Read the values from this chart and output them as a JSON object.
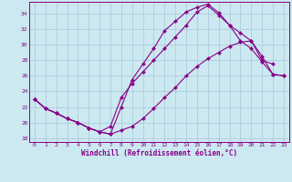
{
  "xlabel": "Windchill (Refroidissement éolien,°C)",
  "xlim_min": -0.5,
  "xlim_max": 23.5,
  "ylim_min": 17.5,
  "ylim_max": 35.5,
  "xticks": [
    0,
    1,
    2,
    3,
    4,
    5,
    6,
    7,
    8,
    9,
    10,
    11,
    12,
    13,
    14,
    15,
    16,
    17,
    18,
    19,
    20,
    21,
    22,
    23
  ],
  "yticks": [
    18,
    20,
    22,
    24,
    26,
    28,
    30,
    32,
    34
  ],
  "bg_color": "#cce8f0",
  "line_color": "#880088",
  "grid_color": "#a8c8d8",
  "curve1_x": [
    0,
    1,
    2,
    3,
    4,
    5,
    6,
    7,
    8,
    9,
    10,
    11,
    12,
    13,
    14,
    15,
    16,
    17,
    18,
    19,
    20,
    21,
    22
  ],
  "curve1_y": [
    23.0,
    21.8,
    21.2,
    20.5,
    20.0,
    19.3,
    18.8,
    18.5,
    22.0,
    25.5,
    27.5,
    29.5,
    31.8,
    33.0,
    34.2,
    34.8,
    35.2,
    34.1,
    32.5,
    31.5,
    30.5,
    28.0,
    27.5
  ],
  "curve2_x": [
    0,
    1,
    2,
    3,
    4,
    5,
    6,
    7,
    8,
    9,
    10,
    11,
    12,
    13,
    14,
    15,
    16,
    17,
    18,
    19,
    20,
    21,
    22,
    23
  ],
  "curve2_y": [
    23.0,
    21.8,
    21.2,
    20.5,
    20.0,
    19.3,
    18.8,
    18.5,
    19.0,
    19.5,
    20.5,
    21.8,
    23.2,
    24.5,
    26.0,
    27.2,
    28.2,
    29.0,
    29.8,
    30.3,
    30.5,
    28.5,
    26.2,
    26.0
  ],
  "curve3_x": [
    0,
    1,
    2,
    3,
    4,
    5,
    6,
    7,
    8,
    9,
    10,
    11,
    12,
    13,
    14,
    15,
    16,
    17,
    18,
    19,
    20,
    21,
    22,
    23
  ],
  "curve3_y": [
    23.0,
    21.8,
    21.2,
    20.5,
    20.0,
    19.3,
    18.8,
    19.5,
    23.2,
    25.0,
    26.5,
    28.0,
    29.5,
    31.0,
    32.5,
    34.2,
    35.0,
    33.8,
    32.5,
    30.5,
    29.5,
    27.8,
    26.2,
    26.0
  ]
}
